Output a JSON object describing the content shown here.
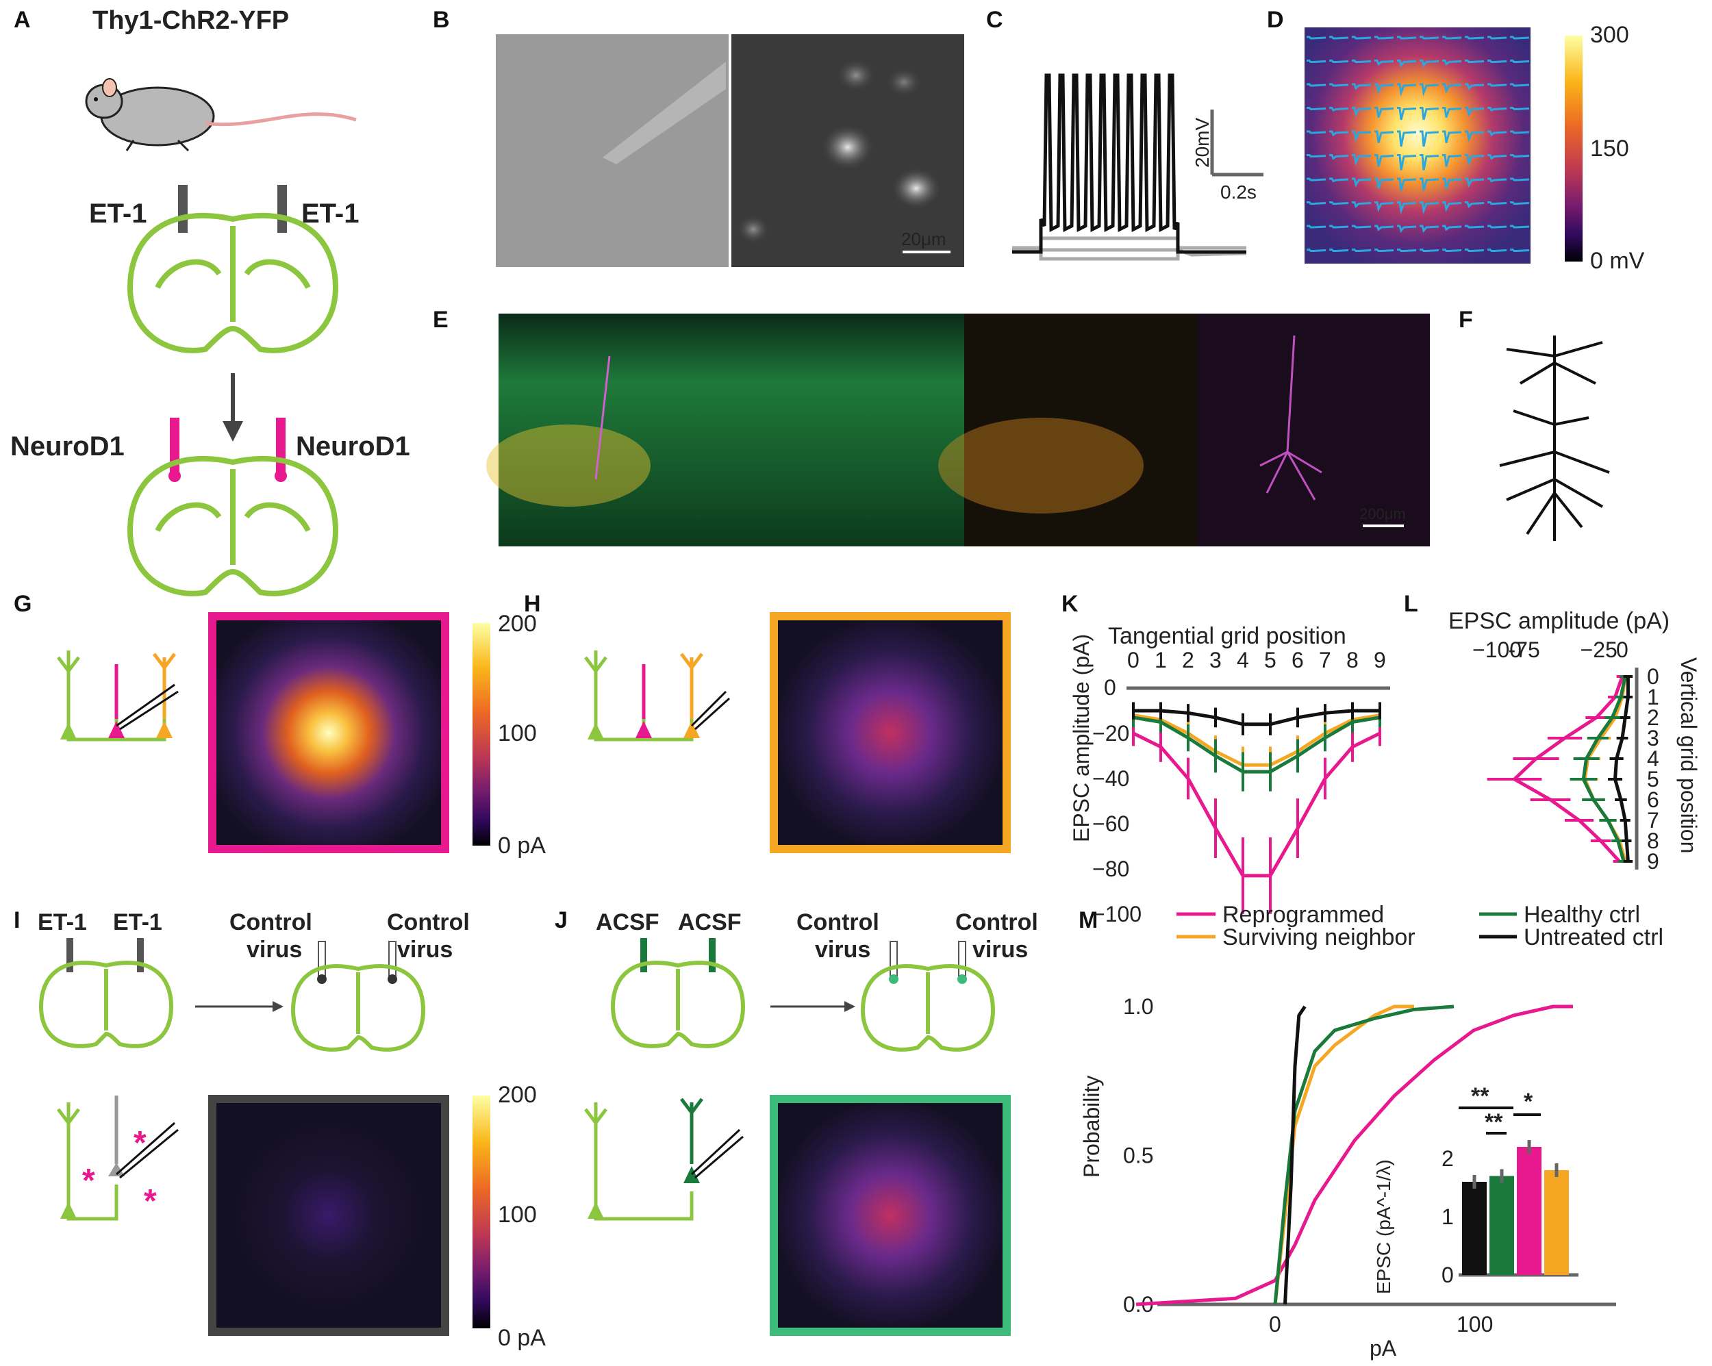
{
  "panels": {
    "A": "A",
    "B": "B",
    "C": "C",
    "D": "D",
    "E": "E",
    "F": "F",
    "G": "G",
    "H": "H",
    "I": "I",
    "J": "J",
    "K": "K",
    "L": "L",
    "M": "M"
  },
  "colors": {
    "neurod1": "#e8198f",
    "green": "#8cc63f",
    "dkgreen": "#1a7a3c",
    "orange": "#f5a623",
    "gray": "#555555",
    "acsf": "#3dbb7b",
    "trace": "#29a8e0"
  },
  "panelA": {
    "mouse_line": "Thy1-ChR2-YFP",
    "et1_left": "ET-1",
    "et1_right": "ET-1",
    "neurod_left": "NeuroD1",
    "neurod_right": "NeuroD1"
  },
  "panelB": {
    "scale": "20μm"
  },
  "panelC": {
    "scale_v": "20mV",
    "scale_t": "0.2s"
  },
  "panelD": {
    "cb_top": "300",
    "cb_mid": "150",
    "cb_bot": "0 mV"
  },
  "panelE": {
    "scale": "200μm"
  },
  "panelG": {
    "cb_top": "200",
    "cb_mid": "100",
    "cb_bot": "0 pA"
  },
  "panelI": {
    "et1_left": "ET-1",
    "et1_right": "ET-1",
    "control_left_1": "Control",
    "control_left_2": "virus",
    "control_right_1": "Control",
    "control_right_2": "virus",
    "cb_top": "200",
    "cb_mid": "100",
    "cb_bot": "0 pA"
  },
  "panelJ": {
    "acsf_left": "ACSF",
    "acsf_right": "ACSF",
    "control_left_1": "Control",
    "control_left_2": "virus",
    "control_right_1": "Control",
    "control_right_2": "virus"
  },
  "panelK": {
    "title": "Tangential grid position",
    "ylabel": "EPSC amplitude (pA)",
    "zero": "0",
    "xticks": [
      "0",
      "1",
      "2",
      "3",
      "4",
      "5",
      "6",
      "7",
      "8",
      "9"
    ],
    "yticks": [
      "−20",
      "−40",
      "−60",
      "−80",
      "−100"
    ]
  },
  "panelL": {
    "title": "EPSC amplitude (pA)",
    "ylabel": "Vertical grid position",
    "xticks": [
      "−100",
      "-75",
      "−25",
      "0"
    ],
    "yticks": [
      "0",
      "1",
      "2",
      "3",
      "4",
      "5",
      "6",
      "7",
      "8",
      "9"
    ]
  },
  "panelM": {
    "legend": [
      "Reprogrammed",
      "Surviving neighbor",
      "Healthy ctrl",
      "Untreated ctrl"
    ],
    "ylabel": "Probability",
    "xlabel": "pA",
    "yticks": [
      "0.0",
      "0.5",
      "1.0"
    ],
    "xticks": [
      "0",
      "100"
    ],
    "inset_ylabel": "EPSC (pA^-1/λ)",
    "inset_yticks": [
      "0",
      "1",
      "2"
    ],
    "sig1": "**",
    "sig2": "**",
    "sig3": "*"
  },
  "chart_data": [
    {
      "type": "line",
      "title": "Tangential grid position",
      "ylabel": "EPSC amplitude (pA)",
      "x": [
        0,
        1,
        2,
        3,
        4,
        5,
        6,
        7,
        8,
        9
      ],
      "ylim": [
        -110,
        0
      ],
      "series": [
        {
          "name": "Reprogrammed",
          "values": [
            -20,
            -26,
            -40,
            -62,
            -83,
            -83,
            -62,
            -40,
            -26,
            -20
          ]
        },
        {
          "name": "Surviving neighbor",
          "values": [
            -12,
            -14,
            -20,
            -28,
            -34,
            -34,
            -28,
            -20,
            -14,
            -12
          ]
        },
        {
          "name": "Healthy ctrl",
          "values": [
            -13,
            -15,
            -22,
            -30,
            -37,
            -37,
            -30,
            -22,
            -15,
            -13
          ]
        },
        {
          "name": "Untreated ctrl",
          "values": [
            -10,
            -10,
            -11,
            -13,
            -16,
            -16,
            -13,
            -11,
            -10,
            -10
          ]
        }
      ]
    },
    {
      "type": "line",
      "title": "EPSC amplitude (pA)",
      "ylabel": "Vertical grid position",
      "y": [
        0,
        1,
        2,
        3,
        4,
        5,
        6,
        7,
        8,
        9
      ],
      "xlim": [
        -110,
        0
      ],
      "series": [
        {
          "name": "Reprogrammed",
          "values": [
            -10,
            -15,
            -28,
            -50,
            -70,
            -85,
            -60,
            -40,
            -25,
            -12
          ]
        },
        {
          "name": "Surviving neighbor",
          "values": [
            -8,
            -10,
            -15,
            -25,
            -34,
            -36,
            -30,
            -20,
            -12,
            -8
          ]
        },
        {
          "name": "Healthy ctrl",
          "values": [
            -8,
            -11,
            -17,
            -27,
            -35,
            -37,
            -30,
            -20,
            -13,
            -9
          ]
        },
        {
          "name": "Untreated ctrl",
          "values": [
            -6,
            -6,
            -8,
            -10,
            -14,
            -15,
            -11,
            -8,
            -7,
            -6
          ]
        }
      ]
    },
    {
      "type": "line",
      "xlabel": "pA",
      "ylabel": "Probability",
      "xlim": [
        -70,
        170
      ],
      "ylim": [
        0,
        1
      ],
      "series": [
        {
          "name": "Reprogrammed",
          "x": [
            -70,
            -20,
            0,
            10,
            20,
            40,
            60,
            80,
            100,
            120,
            140,
            150
          ],
          "values": [
            0,
            0.02,
            0.08,
            0.2,
            0.35,
            0.55,
            0.7,
            0.82,
            0.92,
            0.97,
            1,
            1
          ]
        },
        {
          "name": "Surviving neighbor",
          "x": [
            0,
            5,
            10,
            20,
            30,
            40,
            50,
            60,
            70
          ],
          "values": [
            0,
            0.3,
            0.6,
            0.8,
            0.87,
            0.92,
            0.97,
            1,
            1
          ]
        },
        {
          "name": "Healthy ctrl",
          "x": [
            0,
            5,
            10,
            20,
            30,
            50,
            70,
            90
          ],
          "values": [
            0,
            0.35,
            0.65,
            0.85,
            0.92,
            0.96,
            0.99,
            1
          ]
        },
        {
          "name": "Untreated ctrl",
          "x": [
            5,
            8,
            10,
            12,
            15
          ],
          "values": [
            0,
            0.4,
            0.8,
            0.97,
            1
          ]
        }
      ]
    },
    {
      "type": "bar",
      "ylabel": "EPSC (pA^-1/λ)",
      "ylim": [
        0,
        2.5
      ],
      "categories": [
        "Untreated ctrl",
        "Healthy ctrl",
        "Reprogrammed",
        "Surviving neighbor"
      ],
      "values": [
        1.6,
        1.7,
        2.2,
        1.8
      ]
    }
  ]
}
